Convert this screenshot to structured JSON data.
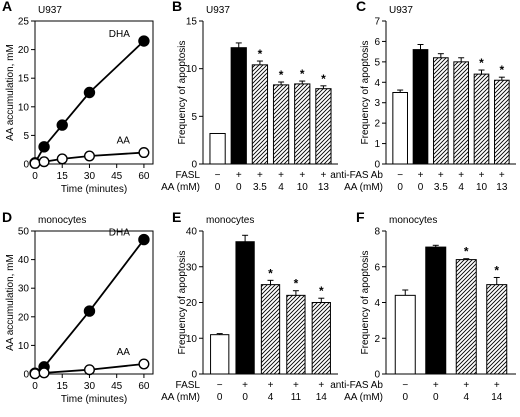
{
  "chart_data": [
    {
      "id": "A",
      "type": "line",
      "panel_letter": "A",
      "cell_label": "U937",
      "xlabel": "Time (minutes)",
      "ylabel": "AA accumulation, mM",
      "xlim": [
        0,
        65
      ],
      "ylim": [
        0,
        25
      ],
      "xticks": [
        0,
        15,
        30,
        45,
        60
      ],
      "yticks": [
        0,
        5,
        10,
        15,
        20,
        25
      ],
      "series": [
        {
          "name": "DHA",
          "marker": "filled",
          "x": [
            0,
            5,
            15,
            30,
            60
          ],
          "y": [
            0.2,
            3.0,
            6.8,
            12.5,
            21.5
          ]
        },
        {
          "name": "AA",
          "marker": "open",
          "x": [
            0,
            5,
            15,
            30,
            60
          ],
          "y": [
            0.1,
            0.4,
            0.9,
            1.4,
            2.0
          ]
        }
      ]
    },
    {
      "id": "B",
      "type": "bar",
      "panel_letter": "B",
      "cell_label": "U937",
      "ylabel": "Frequency of apoptosis",
      "ylim": [
        0,
        15
      ],
      "yticks": [
        0,
        5,
        10,
        15
      ],
      "row_labels": [
        "FASL",
        "AA (mM)"
      ],
      "categories": [
        [
          "−",
          "0"
        ],
        [
          "+",
          "0"
        ],
        [
          "+",
          "3.5"
        ],
        [
          "+",
          "4"
        ],
        [
          "+",
          "10"
        ],
        [
          "+",
          "13"
        ]
      ],
      "values": [
        3.2,
        12.2,
        10.4,
        8.3,
        8.4,
        7.9
      ],
      "errors": [
        0,
        0.5,
        0.4,
        0.3,
        0.3,
        0.3
      ],
      "fills": [
        "open",
        "solid",
        "hatch",
        "hatch",
        "hatch",
        "hatch"
      ],
      "significance": [
        "",
        "",
        "*",
        "*",
        "*",
        "*"
      ]
    },
    {
      "id": "C",
      "type": "bar",
      "panel_letter": "C",
      "cell_label": "U937",
      "ylabel": "Frequency of apoptosis",
      "ylim": [
        0,
        7
      ],
      "yticks": [
        0,
        1,
        2,
        3,
        4,
        5,
        6,
        7
      ],
      "row_labels": [
        "anti-FAS Ab",
        "AA (mM)"
      ],
      "categories": [
        [
          "−",
          "0"
        ],
        [
          "+",
          "0"
        ],
        [
          "+",
          "3.5"
        ],
        [
          "+",
          "4"
        ],
        [
          "+",
          "10"
        ],
        [
          "+",
          "13"
        ]
      ],
      "values": [
        3.5,
        5.6,
        5.2,
        5.0,
        4.4,
        4.1
      ],
      "errors": [
        0.12,
        0.25,
        0.2,
        0.2,
        0.2,
        0.15
      ],
      "fills": [
        "open",
        "solid",
        "hatch",
        "hatch",
        "hatch",
        "hatch"
      ],
      "significance": [
        "",
        "",
        "",
        "",
        "*",
        "*"
      ]
    },
    {
      "id": "D",
      "type": "line",
      "panel_letter": "D",
      "cell_label": "monocytes",
      "xlabel": "Time (minutes)",
      "ylabel": "AA accumulation, mM",
      "xlim": [
        0,
        65
      ],
      "ylim": [
        0,
        50
      ],
      "xticks": [
        0,
        15,
        30,
        45,
        60
      ],
      "yticks": [
        0,
        10,
        20,
        30,
        40,
        50
      ],
      "series": [
        {
          "name": "DHA",
          "marker": "filled",
          "x": [
            0,
            5,
            30,
            60
          ],
          "y": [
            0.3,
            2.5,
            22,
            47
          ]
        },
        {
          "name": "AA",
          "marker": "open",
          "x": [
            0,
            5,
            30,
            60
          ],
          "y": [
            0.1,
            0.4,
            1.5,
            3.5
          ]
        }
      ]
    },
    {
      "id": "E",
      "type": "bar",
      "panel_letter": "E",
      "cell_label": "monocytes",
      "ylabel": "Frequency of apoptosis",
      "ylim": [
        0,
        40
      ],
      "yticks": [
        0,
        10,
        20,
        30,
        40
      ],
      "row_labels": [
        "FASL",
        "AA (mM)"
      ],
      "categories": [
        [
          "−",
          "0"
        ],
        [
          "+",
          "0"
        ],
        [
          "+",
          "4"
        ],
        [
          "+",
          "11"
        ],
        [
          "+",
          "14"
        ]
      ],
      "values": [
        11,
        37,
        25,
        22,
        20
      ],
      "errors": [
        0.3,
        1.8,
        1.2,
        1.3,
        1.2
      ],
      "fills": [
        "open",
        "solid",
        "hatch",
        "hatch",
        "hatch"
      ],
      "significance": [
        "",
        "",
        "*",
        "*",
        "*"
      ]
    },
    {
      "id": "F",
      "type": "bar",
      "panel_letter": "F",
      "cell_label": "monocytes",
      "ylabel": "Frequency of apoptosis",
      "ylim": [
        0,
        8
      ],
      "yticks": [
        0,
        2,
        4,
        6,
        8
      ],
      "row_labels": [
        "anti-FAS Ab",
        "AA (mM)"
      ],
      "categories": [
        [
          "−",
          "0"
        ],
        [
          "+",
          "0"
        ],
        [
          "+",
          "4"
        ],
        [
          "+",
          "14"
        ]
      ],
      "values": [
        4.4,
        7.1,
        6.4,
        5.0
      ],
      "errors": [
        0.3,
        0.1,
        0.05,
        0.4
      ],
      "fills": [
        "open",
        "solid",
        "hatch",
        "hatch"
      ],
      "significance": [
        "",
        "",
        "*",
        "*"
      ]
    }
  ]
}
